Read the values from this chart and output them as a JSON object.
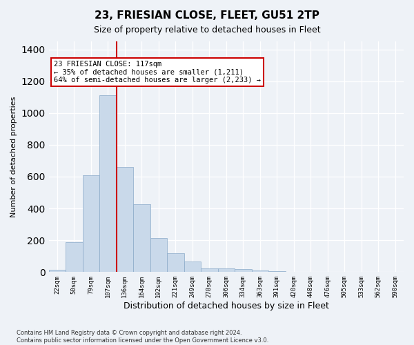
{
  "title": "23, FRIESIAN CLOSE, FLEET, GU51 2TP",
  "subtitle": "Size of property relative to detached houses in Fleet",
  "xlabel": "Distribution of detached houses by size in Fleet",
  "ylabel": "Number of detached properties",
  "bar_color": "#c9d9ea",
  "bar_edge_color": "#8aaac8",
  "vline_color": "#cc0000",
  "vline_bin_index": 3,
  "annotation_text": "23 FRIESIAN CLOSE: 117sqm\n← 35% of detached houses are smaller (1,211)\n64% of semi-detached houses are larger (2,233) →",
  "annotation_box_color": "white",
  "annotation_box_edge": "#cc0000",
  "bins": [
    "22sqm",
    "50sqm",
    "79sqm",
    "107sqm",
    "136sqm",
    "164sqm",
    "192sqm",
    "221sqm",
    "249sqm",
    "278sqm",
    "306sqm",
    "334sqm",
    "363sqm",
    "391sqm",
    "420sqm",
    "448sqm",
    "476sqm",
    "505sqm",
    "533sqm",
    "562sqm",
    "590sqm"
  ],
  "values": [
    15,
    190,
    610,
    1110,
    660,
    425,
    215,
    120,
    65,
    25,
    25,
    20,
    10,
    5,
    0,
    0,
    0,
    0,
    0,
    0,
    0
  ],
  "ylim": [
    0,
    1450
  ],
  "yticks": [
    0,
    200,
    400,
    600,
    800,
    1000,
    1200,
    1400
  ],
  "footer": "Contains HM Land Registry data © Crown copyright and database right 2024.\nContains public sector information licensed under the Open Government Licence v3.0.",
  "background_color": "#eef2f7",
  "grid_color": "#ffffff"
}
